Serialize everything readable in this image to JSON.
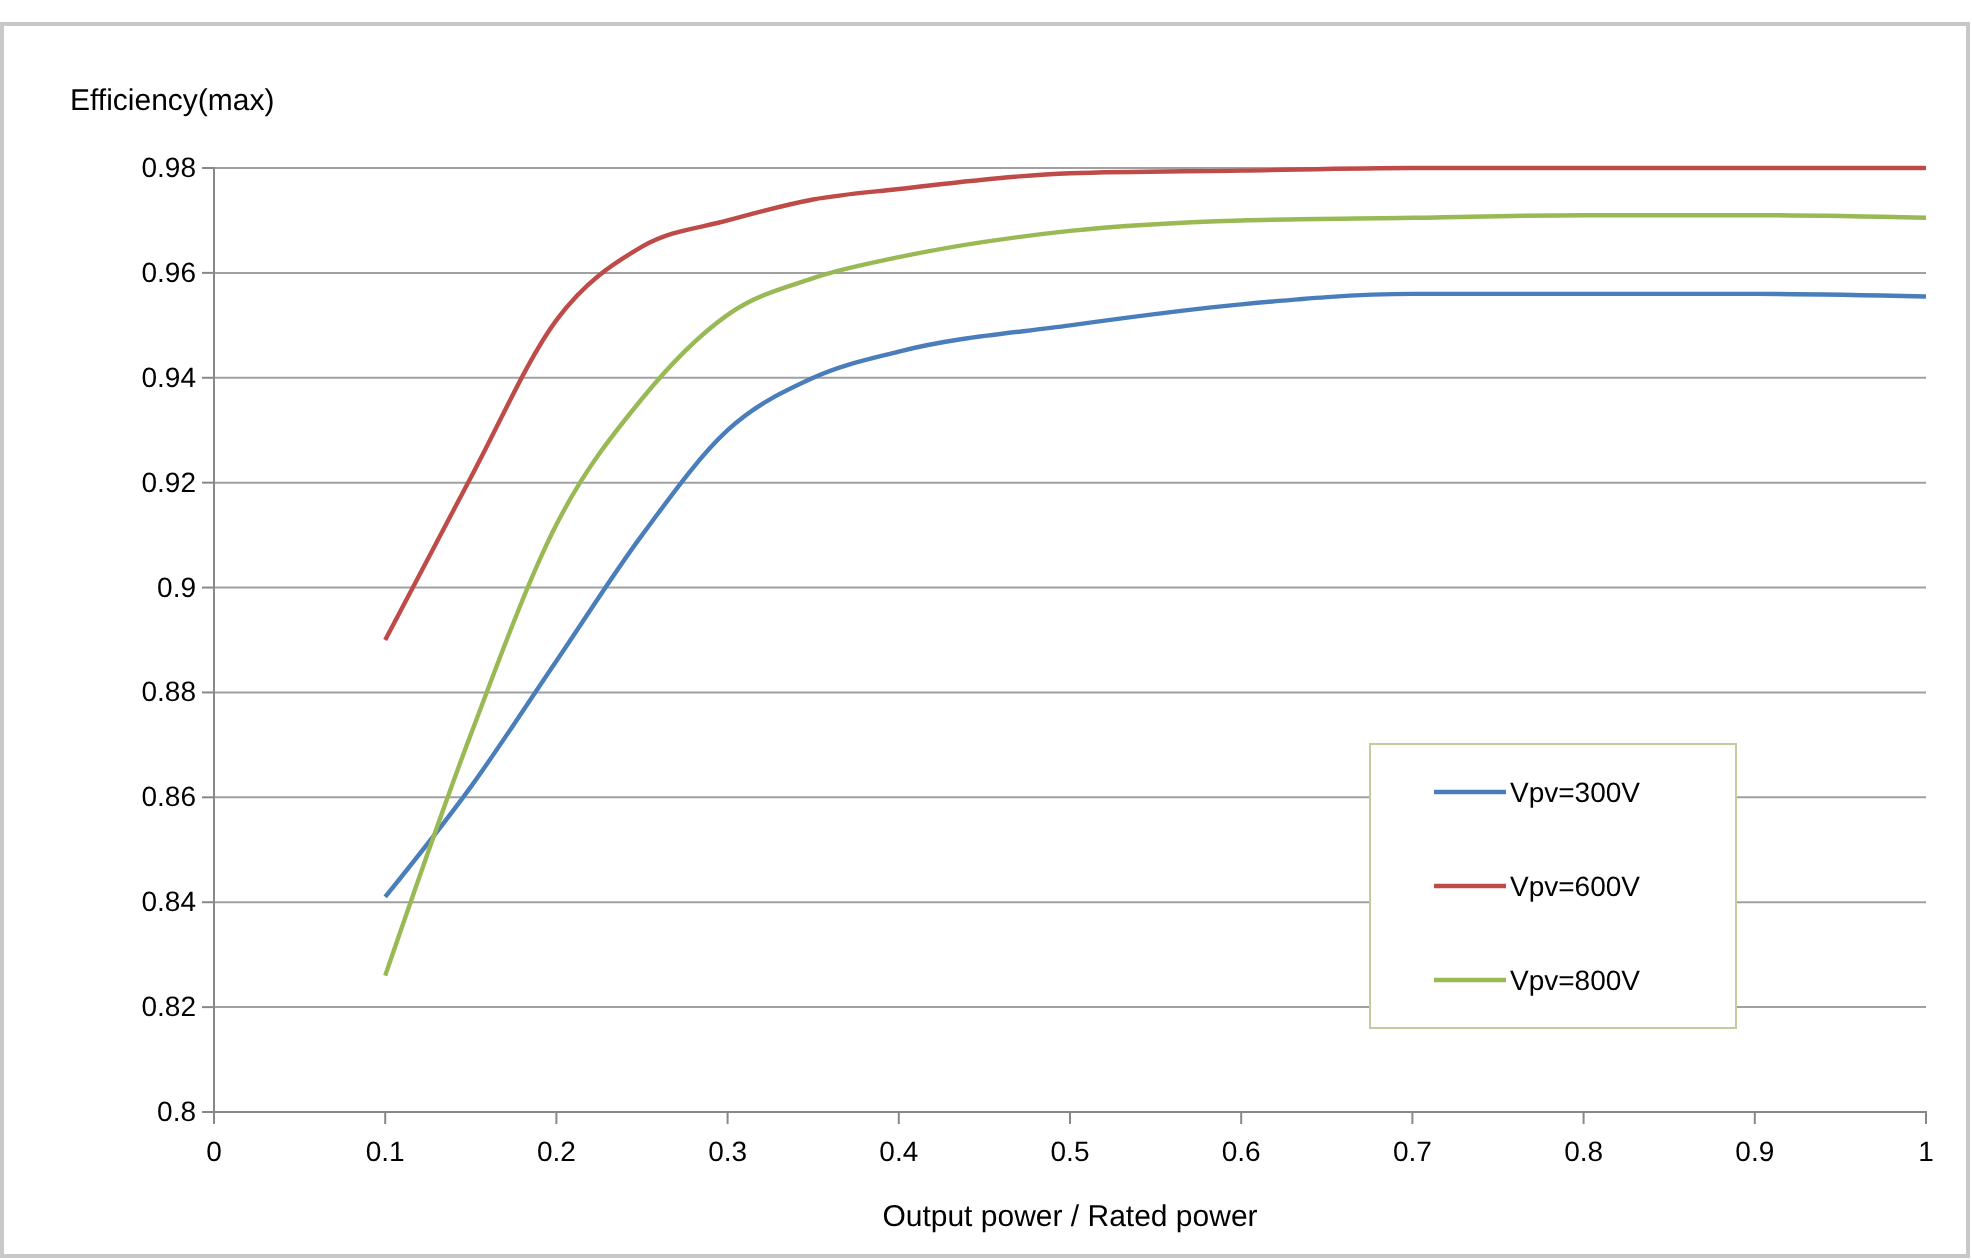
{
  "chart_data": {
    "type": "line",
    "ylabel": "Efficiency(max)",
    "xlabel": "Output power / Rated power",
    "x": [
      0.1,
      0.15,
      0.2,
      0.25,
      0.3,
      0.35,
      0.4,
      0.5,
      0.6,
      0.7,
      0.8,
      0.9,
      1
    ],
    "series": [
      {
        "name": "Vpv=300V",
        "color": "#4a7ebb",
        "values": [
          0.841,
          0.862,
          0.886,
          0.91,
          0.93,
          0.94,
          0.945,
          0.95,
          0.954,
          0.956,
          0.956,
          0.956,
          0.9555
        ]
      },
      {
        "name": "Vpv=600V",
        "color": "#be4b48",
        "values": [
          0.89,
          0.921,
          0.951,
          0.965,
          0.97,
          0.974,
          0.976,
          0.979,
          0.9795,
          0.98,
          0.98,
          0.98,
          0.98
        ]
      },
      {
        "name": "Vpv=800V",
        "color": "#98b954",
        "values": [
          0.826,
          0.872,
          0.912,
          0.936,
          0.952,
          0.959,
          0.963,
          0.968,
          0.97,
          0.9705,
          0.971,
          0.971,
          0.9705
        ]
      }
    ],
    "xlim": [
      0,
      1
    ],
    "xticks": [
      0,
      0.1,
      0.2,
      0.3,
      0.4,
      0.5,
      0.6,
      0.7,
      0.8,
      0.9,
      1
    ],
    "ylim": [
      0.8,
      0.98
    ],
    "yticks": [
      0.8,
      0.82,
      0.84,
      0.86,
      0.88,
      0.9,
      0.92,
      0.94,
      0.96,
      0.98
    ],
    "grid": "y",
    "legend": "bottom right",
    "marker": "none",
    "line_style": "solid"
  }
}
